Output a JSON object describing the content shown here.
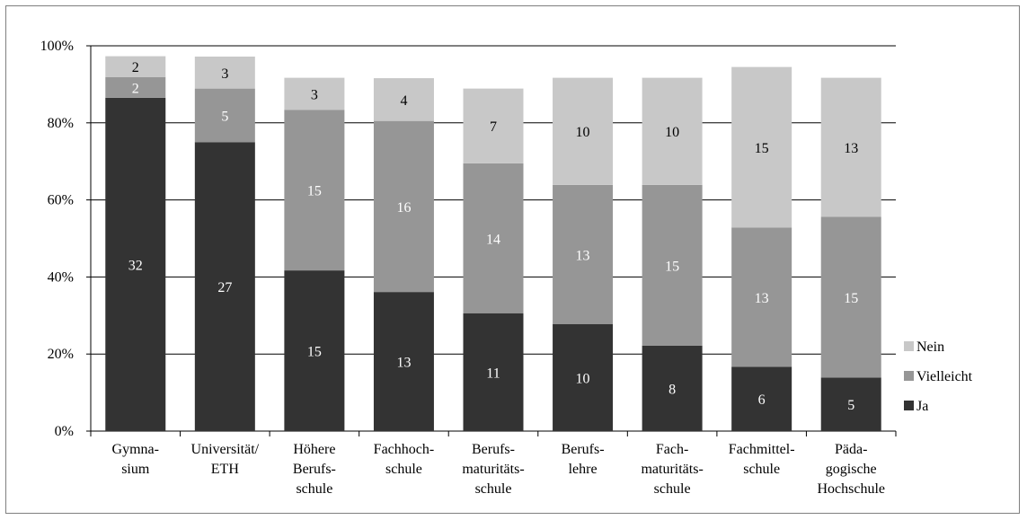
{
  "chart_data": {
    "type": "bar",
    "stacked": true,
    "ylim": [
      0,
      100
    ],
    "yticks": [
      "0%",
      "20%",
      "40%",
      "60%",
      "80%",
      "100%"
    ],
    "ytick_values": [
      0,
      20,
      40,
      60,
      80,
      100
    ],
    "grid": true,
    "legend_position": "right",
    "categories": [
      [
        "Gymna-",
        "sium"
      ],
      [
        "Universität/",
        "ETH"
      ],
      [
        "Höhere",
        "Berufs-",
        "schule"
      ],
      [
        "Fachhoch-",
        "schule"
      ],
      [
        "Berufs-",
        "maturitäts-",
        "schule"
      ],
      [
        "Berufs-",
        "lehre"
      ],
      [
        "Fach-",
        "maturitäts-",
        "schule"
      ],
      [
        "Fachmittel-",
        "schule"
      ],
      [
        "Päda-",
        "gogische",
        "Hochschule"
      ]
    ],
    "series": [
      {
        "name": "Ja",
        "color": "#333333",
        "label_color": "#ffffff",
        "percent": [
          86.5,
          75.0,
          41.7,
          36.1,
          30.6,
          27.8,
          22.2,
          16.7,
          13.9
        ],
        "labels": [
          "32",
          "27",
          "15",
          "13",
          "11",
          "10",
          "8",
          "6",
          "5"
        ]
      },
      {
        "name": "Vielleicht",
        "color": "#969696",
        "label_color": "#ffffff",
        "percent": [
          5.4,
          13.9,
          41.7,
          44.4,
          38.9,
          36.1,
          41.7,
          36.1,
          41.7
        ],
        "labels": [
          "2",
          "5",
          "15",
          "16",
          "14",
          "13",
          "15",
          "13",
          "15"
        ]
      },
      {
        "name": "Nein",
        "color": "#c8c8c8",
        "label_color": "#000000",
        "percent": [
          5.4,
          8.3,
          8.3,
          11.1,
          19.4,
          27.8,
          27.8,
          41.7,
          36.1
        ],
        "labels": [
          "2",
          "3",
          "3",
          "4",
          "7",
          "10",
          "10",
          "15",
          "13"
        ]
      }
    ],
    "legend_order": [
      "Nein",
      "Vielleicht",
      "Ja"
    ]
  }
}
